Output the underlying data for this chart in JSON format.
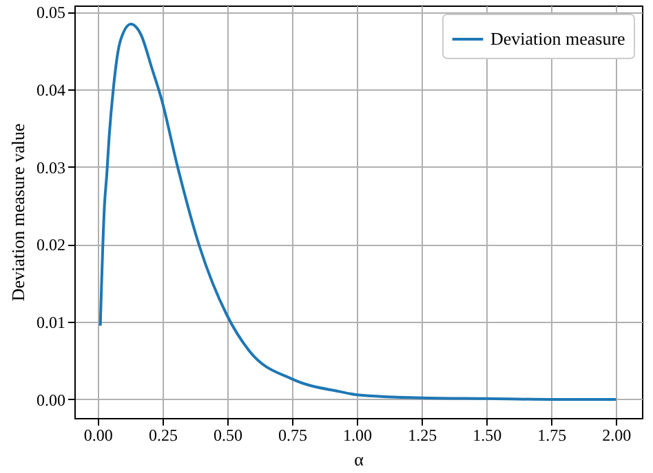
{
  "chart_data": {
    "type": "line",
    "xlabel": "α",
    "ylabel": "Deviation measure value",
    "x": [
      0.01,
      0.026,
      0.035,
      0.044,
      0.061,
      0.087,
      0.128,
      0.166,
      0.21,
      0.248,
      0.306,
      0.393,
      0.498,
      0.586,
      0.752,
      0.935,
      1.0,
      1.25,
      1.5,
      1.75,
      2.0
    ],
    "series": [
      {
        "name": "Deviation measure",
        "color": "#1f77b4",
        "values": [
          0.0095,
          0.025,
          0.029,
          0.0338,
          0.0403,
          0.0462,
          0.0484,
          0.0471,
          0.0426,
          0.0385,
          0.0303,
          0.0197,
          0.0109,
          0.0062,
          0.0026,
          0.001,
          0.0006,
          0.0002,
          0.0001,
          0.0,
          0.0
        ]
      }
    ],
    "xlim": [
      -0.09,
      2.1
    ],
    "ylim": [
      -0.0024,
      0.0508
    ],
    "xticks": [
      {
        "value": 0,
        "label": "0.00"
      },
      {
        "value": 0.25,
        "label": "0.25"
      },
      {
        "value": 0.5,
        "label": "0.50"
      },
      {
        "value": 0.75,
        "label": "0.75"
      },
      {
        "value": 1,
        "label": "1.00"
      },
      {
        "value": 1.25,
        "label": "1.25"
      },
      {
        "value": 1.5,
        "label": "1.50"
      },
      {
        "value": 1.75,
        "label": "1.75"
      },
      {
        "value": 2,
        "label": "2.00"
      }
    ],
    "yticks": [
      {
        "value": 0,
        "label": "0.00"
      },
      {
        "value": 0.01,
        "label": "0.01"
      },
      {
        "value": 0.02,
        "label": "0.02"
      },
      {
        "value": 0.03,
        "label": "0.03"
      },
      {
        "value": 0.04,
        "label": "0.04"
      },
      {
        "value": 0.05,
        "label": "0.05"
      }
    ],
    "grid": true,
    "legend": "top right",
    "line_style": "solid",
    "marker": "none"
  }
}
